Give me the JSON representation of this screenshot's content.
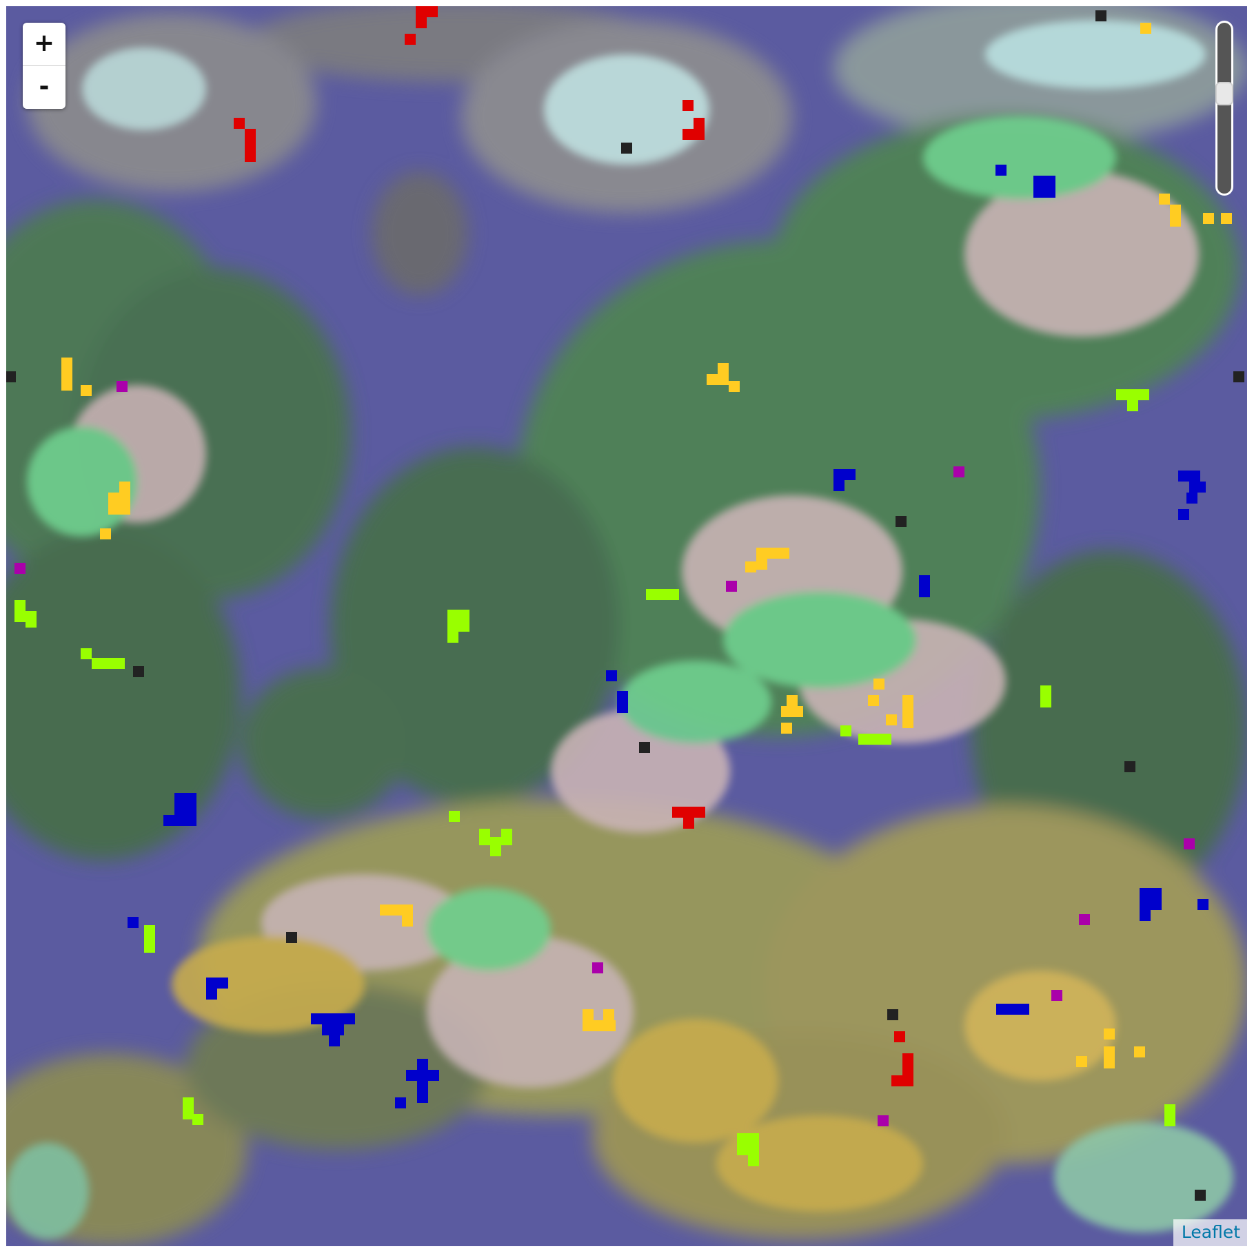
{
  "map": {
    "zoom_in_label": "+",
    "zoom_out_label": "-",
    "zoom_level_fraction": 0.6,
    "attribution_label": "Leaflet"
  },
  "legend_colors": {
    "ocean": "#5b5ba0",
    "grass": "#4f8a55",
    "forest": "#3f6b47",
    "meadow": "#6fd08f",
    "bare": "#c9b3b5",
    "desert": "#c7b04d",
    "snow": "#b9e3e3",
    "rock": "#8e8e8e"
  },
  "marker_colors": {
    "red": "#e00000",
    "blue": "#0000cc",
    "yellow": "#ffcc22",
    "lime": "#99ff00",
    "purple": "#aa00aa",
    "black": "#222222"
  }
}
